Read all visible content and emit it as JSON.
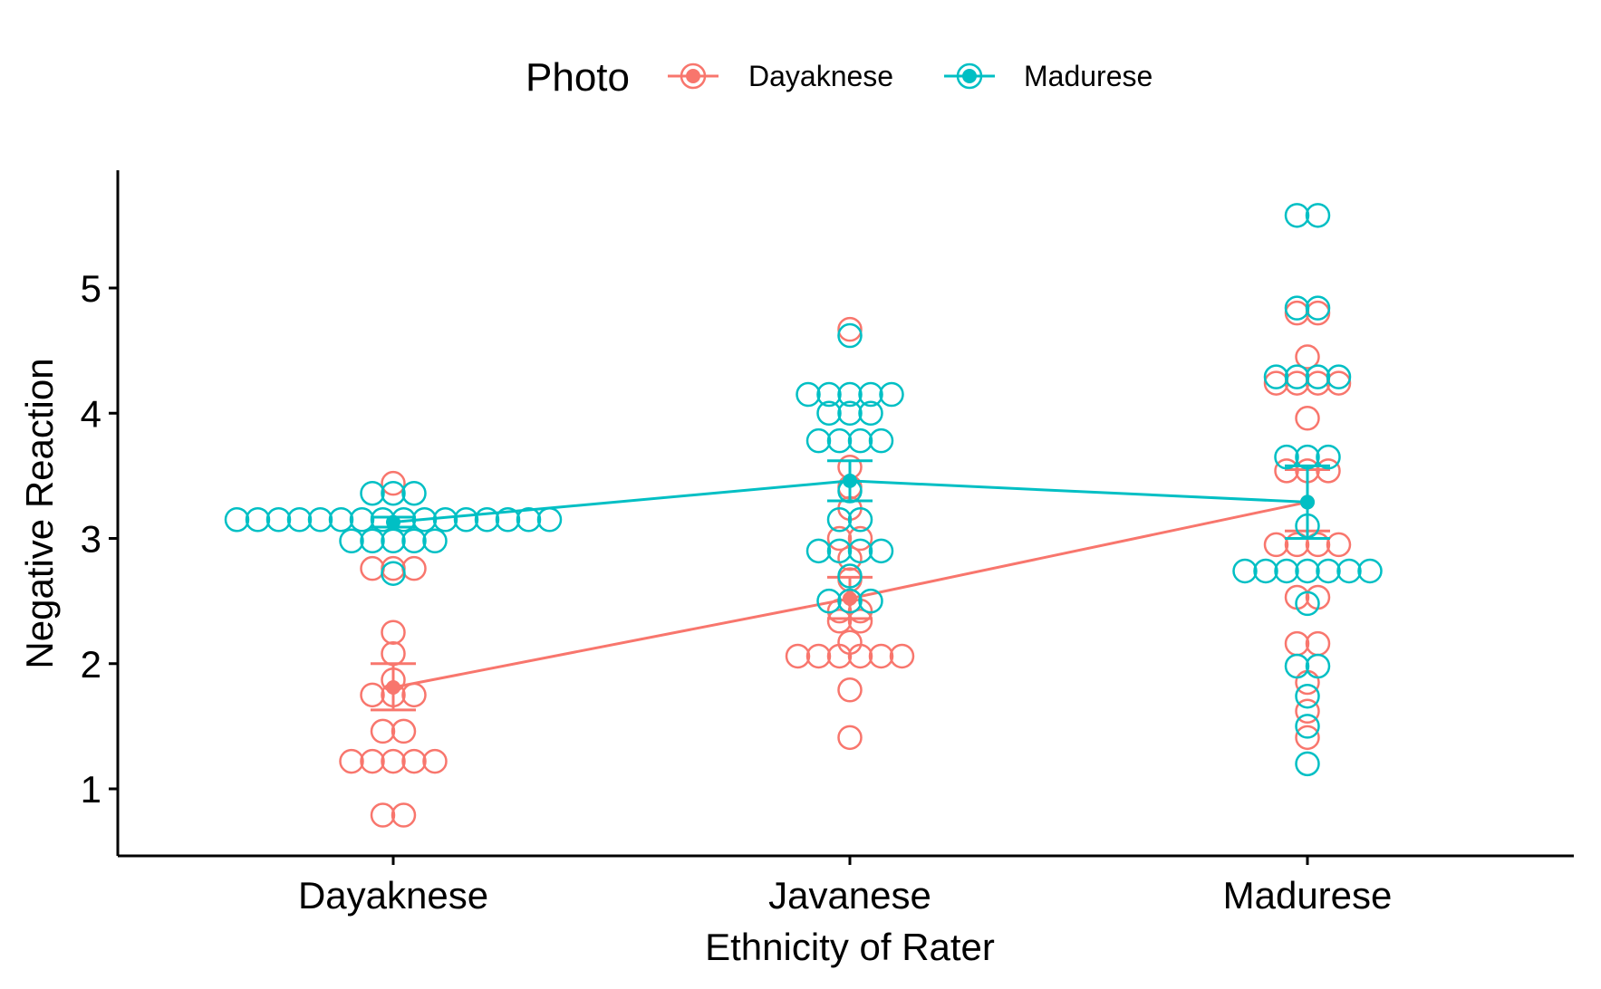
{
  "chart_data": {
    "type": "scatter",
    "xlabel": "Ethnicity of Rater",
    "ylabel": "Negative Reaction",
    "categories": [
      "Dayaknese",
      "Javanese",
      "Madurese"
    ],
    "y_ticks": [
      "1",
      "2",
      "3",
      "4",
      "5"
    ],
    "ylim": [
      0.45,
      5.9
    ],
    "grid": false,
    "legend": {
      "title": "Photo",
      "position": "top",
      "entries": [
        "Dayaknese",
        "Madurese"
      ]
    },
    "series": [
      {
        "name": "Dayaknese",
        "color": "#F8766D",
        "means": [
          1.81,
          2.52,
          3.29
        ],
        "error_low": [
          1.63,
          2.36,
          3.06
        ],
        "error_high": [
          2.0,
          2.69,
          3.55
        ],
        "points": [
          [
            3.44,
            2.76,
            2.76,
            2.76,
            2.25,
            2.08,
            1.87,
            1.75,
            1.75,
            1.75,
            1.46,
            1.46,
            1.22,
            1.22,
            1.22,
            1.22,
            1.22,
            0.79,
            0.79
          ],
          [
            4.67,
            3.57,
            3.41,
            3.24,
            3.0,
            3.0,
            2.84,
            2.67,
            2.5,
            2.42,
            2.42,
            2.34,
            2.34,
            2.17,
            2.06,
            2.06,
            2.06,
            2.06,
            2.06,
            2.06,
            1.79,
            1.41
          ],
          [
            4.8,
            4.8,
            4.45,
            4.24,
            4.24,
            4.24,
            4.24,
            3.96,
            3.54,
            3.54,
            3.54,
            2.95,
            2.95,
            2.95,
            2.95,
            2.53,
            2.53,
            2.16,
            2.16,
            1.85,
            1.62,
            1.41
          ]
        ]
      },
      {
        "name": "Madurese",
        "color": "#00BFC4",
        "means": [
          3.13,
          3.46,
          3.29
        ],
        "error_low": [
          3.09,
          3.3,
          3.0
        ],
        "error_high": [
          3.17,
          3.62,
          3.58
        ],
        "points": [
          [
            3.36,
            3.36,
            3.36,
            3.15,
            3.15,
            3.15,
            3.15,
            3.15,
            3.15,
            3.15,
            3.15,
            3.15,
            3.15,
            3.15,
            3.15,
            3.15,
            3.15,
            3.15,
            3.15,
            2.98,
            2.98,
            2.98,
            2.98,
            2.98,
            2.72
          ],
          [
            4.62,
            4.15,
            4.15,
            4.15,
            4.15,
            4.15,
            4.0,
            4.0,
            4.0,
            3.78,
            3.78,
            3.78,
            3.78,
            3.38,
            3.15,
            3.15,
            2.9,
            2.9,
            2.9,
            2.9,
            2.7,
            2.5,
            2.5,
            2.5
          ],
          [
            5.58,
            5.58,
            4.84,
            4.84,
            4.29,
            4.29,
            4.29,
            4.29,
            3.65,
            3.65,
            3.65,
            3.1,
            2.74,
            2.74,
            2.74,
            2.74,
            2.74,
            2.74,
            2.74,
            2.48,
            1.98,
            1.98,
            1.74,
            1.5,
            1.2
          ]
        ]
      }
    ]
  }
}
